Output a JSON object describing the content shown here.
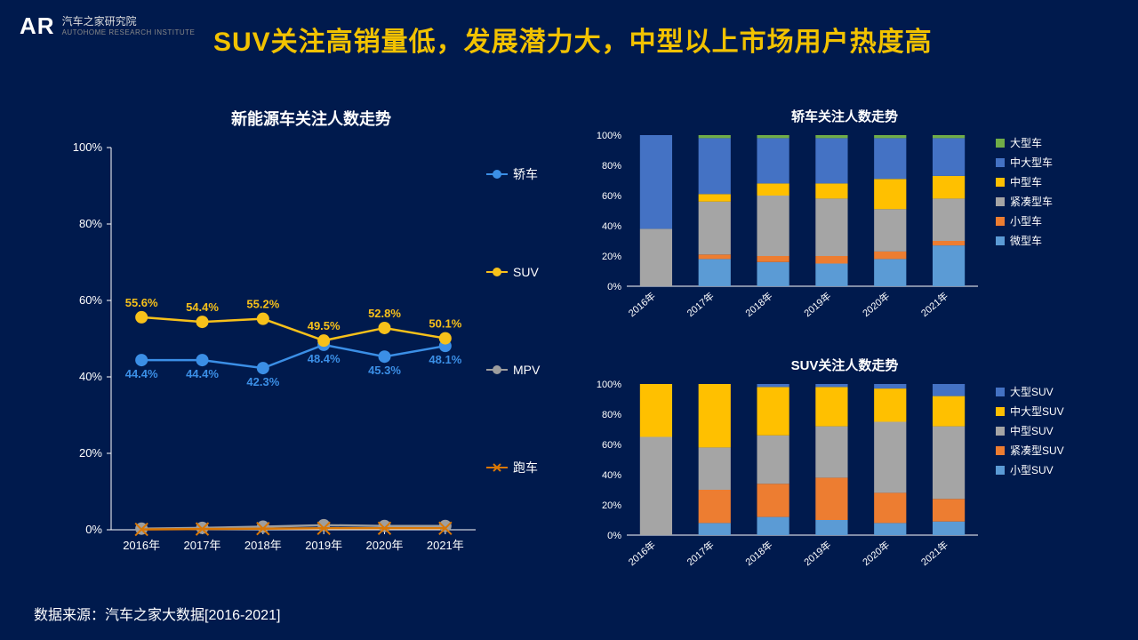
{
  "logo": {
    "mark": "AR",
    "name": "汽车之家研究院",
    "sub": "AUTOHOME RESEARCH INSTITUTE"
  },
  "main_title": "SUV关注高销量低，发展潜力大，中型以上市场用户热度高",
  "source": "数据来源：汽车之家大数据[2016-2021]",
  "colors": {
    "bg": "#001a4d",
    "accent": "#f2c200",
    "sedan": "#3b8fe6",
    "suv": "#f7c11a",
    "mpv": "#9e9e9e",
    "sports": "#d97706",
    "micro": "#5b9bd5",
    "small": "#ed7d31",
    "compact": "#a5a5a5",
    "mid": "#ffc000",
    "midlarge": "#4472c4",
    "large": "#70ad47"
  },
  "line_chart": {
    "title": "新能源车关注人数走势",
    "ylabel": "",
    "ylim": [
      0,
      100
    ],
    "ytick_step": 20,
    "categories": [
      "2016年",
      "2017年",
      "2018年",
      "2019年",
      "2020年",
      "2021年"
    ],
    "series": [
      {
        "name": "轿车",
        "color": "#3b8fe6",
        "marker": "circle",
        "values": [
          44.4,
          44.4,
          42.3,
          48.4,
          45.3,
          48.1
        ],
        "labels": [
          "44.4%",
          "44.4%",
          "42.3%",
          "48.4%",
          "45.3%",
          "48.1%"
        ],
        "label_above": false
      },
      {
        "name": "SUV",
        "color": "#f7c11a",
        "marker": "circle",
        "values": [
          55.6,
          54.4,
          55.2,
          49.5,
          52.8,
          50.1
        ],
        "labels": [
          "55.6%",
          "54.4%",
          "55.2%",
          "49.5%",
          "52.8%",
          "50.1%"
        ],
        "label_above": true
      },
      {
        "name": "MPV",
        "color": "#9e9e9e",
        "marker": "circle",
        "values": [
          0.3,
          0.5,
          0.8,
          1.2,
          1.0,
          1.0
        ],
        "labels": [],
        "label_above": true
      },
      {
        "name": "跑车",
        "color": "#d97706",
        "marker": "x",
        "values": [
          0.1,
          0.2,
          0.3,
          0.4,
          0.4,
          0.4
        ],
        "labels": [],
        "label_above": true
      }
    ],
    "legend_pos": "right",
    "marker_size": 7,
    "line_width": 2.5,
    "label_fontsize": 13
  },
  "sedan_stack": {
    "title": "轿车关注人数走势",
    "ylim": [
      0,
      100
    ],
    "ytick_step": 20,
    "categories": [
      "2016年",
      "2017年",
      "2018年",
      "2019年",
      "2020年",
      "2021年"
    ],
    "segments": [
      "微型车",
      "小型车",
      "紧凑型车",
      "中型车",
      "中大型车",
      "大型车"
    ],
    "seg_colors": [
      "#5b9bd5",
      "#ed7d31",
      "#a5a5a5",
      "#ffc000",
      "#4472c4",
      "#70ad47"
    ],
    "data": [
      [
        0,
        0,
        38,
        0,
        62,
        0
      ],
      [
        18,
        3,
        35,
        5,
        37,
        2
      ],
      [
        16,
        4,
        40,
        8,
        30,
        2
      ],
      [
        15,
        5,
        38,
        10,
        30,
        2
      ],
      [
        18,
        5,
        28,
        20,
        27,
        2
      ],
      [
        27,
        3,
        28,
        15,
        25,
        2
      ]
    ],
    "bar_width": 0.55
  },
  "suv_stack": {
    "title": "SUV关注人数走势",
    "ylim": [
      0,
      100
    ],
    "ytick_step": 20,
    "categories": [
      "2016年",
      "2017年",
      "2018年",
      "2019年",
      "2020年",
      "2021年"
    ],
    "segments": [
      "小型SUV",
      "紧凑型SUV",
      "中型SUV",
      "中大型SUV",
      "大型SUV"
    ],
    "seg_colors": [
      "#5b9bd5",
      "#ed7d31",
      "#a5a5a5",
      "#ffc000",
      "#4472c4"
    ],
    "data": [
      [
        0,
        0,
        65,
        35,
        0
      ],
      [
        8,
        22,
        28,
        42,
        0
      ],
      [
        12,
        22,
        32,
        32,
        2
      ],
      [
        10,
        28,
        34,
        26,
        2
      ],
      [
        8,
        20,
        47,
        22,
        3
      ],
      [
        9,
        15,
        48,
        20,
        8
      ]
    ],
    "bar_width": 0.55
  }
}
